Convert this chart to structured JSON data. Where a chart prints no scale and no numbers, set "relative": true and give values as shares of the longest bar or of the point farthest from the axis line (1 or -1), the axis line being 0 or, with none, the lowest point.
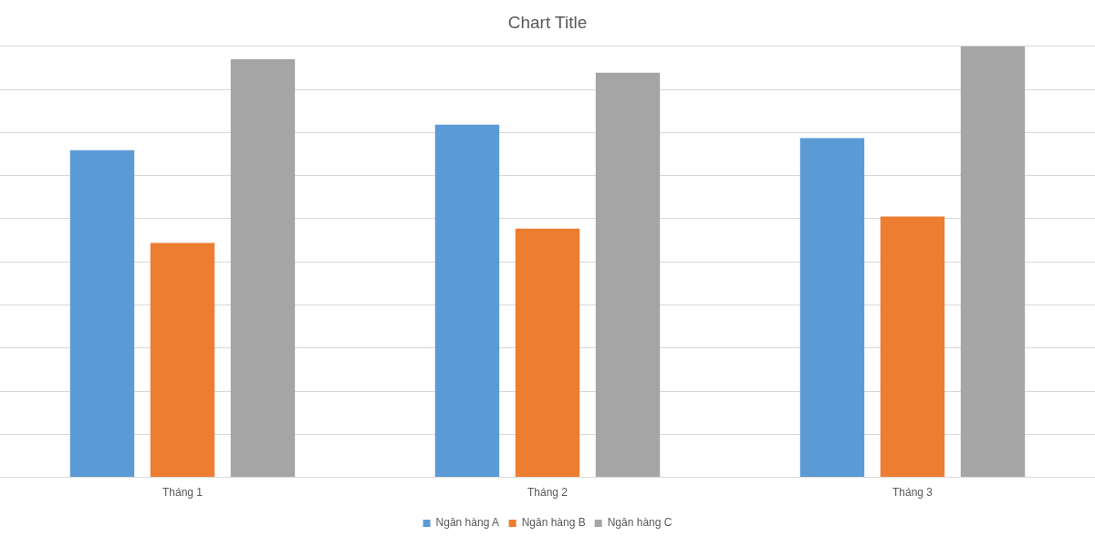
{
  "chart_data": {
    "type": "bar",
    "title": "Chart Title",
    "categories": [
      "Tháng 1",
      "Tháng 2",
      "Tháng 3"
    ],
    "relative": true,
    "grid": "y",
    "legend": "bottom",
    "series": [
      {
        "name": "Ngân hàng A",
        "color": "#5b9bd5",
        "values": [
          0.759,
          0.818,
          0.787
        ]
      },
      {
        "name": "Ngân hàng B",
        "color": "#ed7d31",
        "values": [
          0.544,
          0.577,
          0.605
        ]
      },
      {
        "name": "Ngân hàng C",
        "color": "#a5a5a5",
        "values": [
          0.97,
          0.939,
          1
        ]
      }
    ]
  }
}
